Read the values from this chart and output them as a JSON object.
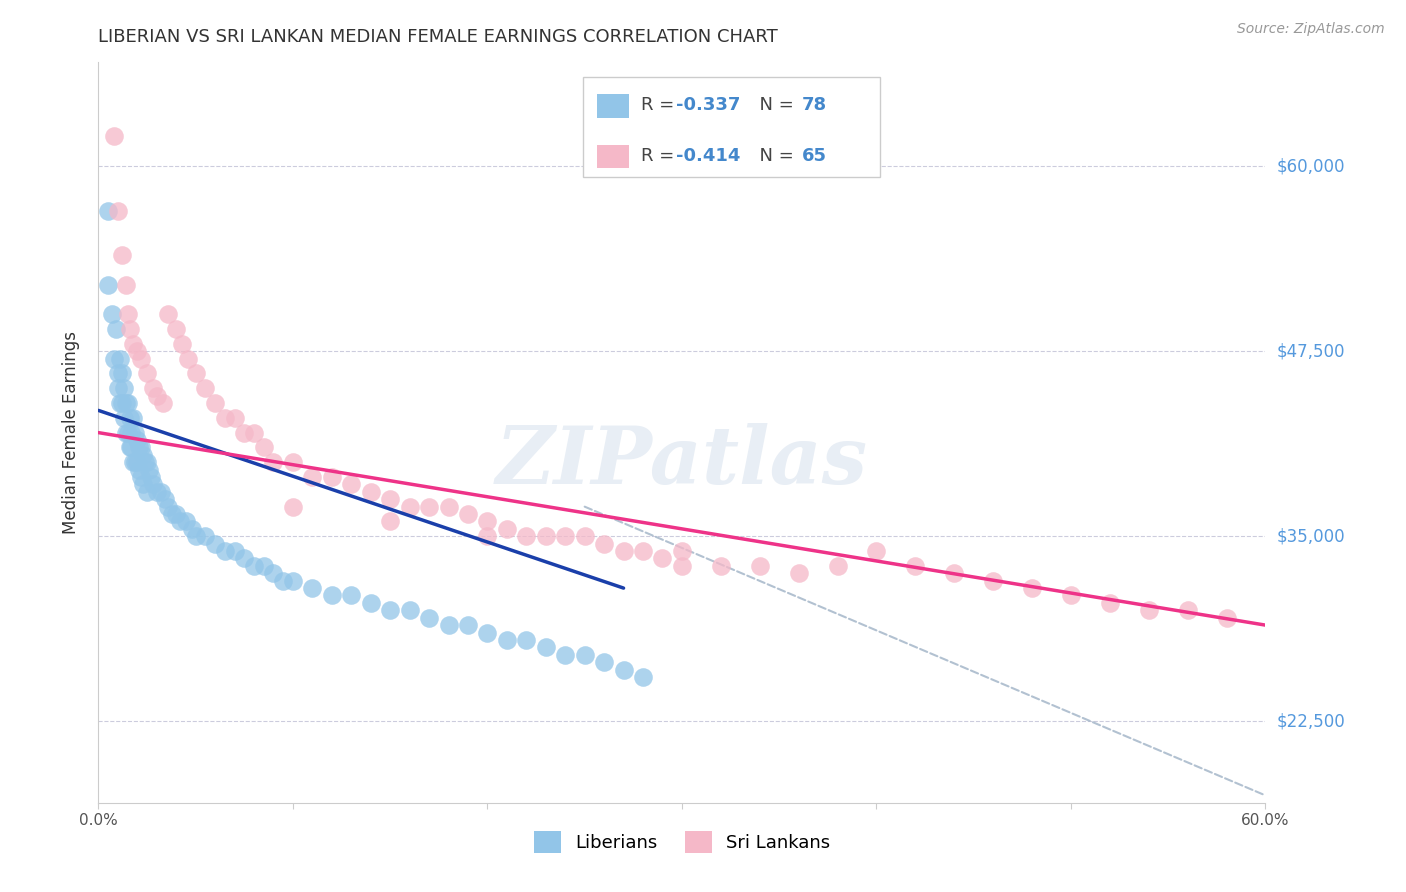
{
  "title": "LIBERIAN VS SRI LANKAN MEDIAN FEMALE EARNINGS CORRELATION CHART",
  "source": "Source: ZipAtlas.com",
  "ylabel": "Median Female Earnings",
  "xlim": [
    0.0,
    0.6
  ],
  "ylim": [
    17000,
    67000
  ],
  "yticks": [
    22500,
    35000,
    47500,
    60000
  ],
  "ytick_labels": [
    "$22,500",
    "$35,000",
    "$47,500",
    "$60,000"
  ],
  "xticks": [
    0.0,
    0.1,
    0.2,
    0.3,
    0.4,
    0.5,
    0.6
  ],
  "xtick_labels": [
    "0.0%",
    "",
    "",
    "",
    "",
    "",
    "60.0%"
  ],
  "color_liberian": "#92C5E8",
  "color_srilankan": "#F5B8C8",
  "color_trend_liberian": "#1A3FAA",
  "color_trend_srilankan": "#EE3388",
  "color_trend_dashed": "#AABBCC",
  "watermark": "ZIPatlas",
  "liberian_x": [
    0.005,
    0.005,
    0.007,
    0.008,
    0.009,
    0.01,
    0.01,
    0.011,
    0.011,
    0.012,
    0.012,
    0.013,
    0.013,
    0.014,
    0.014,
    0.015,
    0.015,
    0.016,
    0.016,
    0.017,
    0.017,
    0.018,
    0.018,
    0.019,
    0.019,
    0.02,
    0.02,
    0.021,
    0.021,
    0.022,
    0.022,
    0.023,
    0.023,
    0.024,
    0.025,
    0.025,
    0.026,
    0.027,
    0.028,
    0.03,
    0.032,
    0.034,
    0.036,
    0.038,
    0.04,
    0.042,
    0.045,
    0.048,
    0.05,
    0.055,
    0.06,
    0.065,
    0.07,
    0.075,
    0.08,
    0.085,
    0.09,
    0.095,
    0.1,
    0.11,
    0.12,
    0.13,
    0.14,
    0.15,
    0.16,
    0.17,
    0.18,
    0.19,
    0.2,
    0.21,
    0.22,
    0.23,
    0.24,
    0.25,
    0.26,
    0.27,
    0.28
  ],
  "liberian_y": [
    57000,
    52000,
    50000,
    47000,
    49000,
    45000,
    46000,
    47000,
    44000,
    46000,
    44000,
    45000,
    43000,
    44000,
    42000,
    44000,
    42000,
    43000,
    41000,
    42000,
    41000,
    43000,
    40000,
    42000,
    40000,
    41500,
    40000,
    41000,
    39500,
    41000,
    39000,
    40500,
    38500,
    40000,
    40000,
    38000,
    39500,
    39000,
    38500,
    38000,
    38000,
    37500,
    37000,
    36500,
    36500,
    36000,
    36000,
    35500,
    35000,
    35000,
    34500,
    34000,
    34000,
    33500,
    33000,
    33000,
    32500,
    32000,
    32000,
    31500,
    31000,
    31000,
    30500,
    30000,
    30000,
    29500,
    29000,
    29000,
    28500,
    28000,
    28000,
    27500,
    27000,
    27000,
    26500,
    26000,
    25500
  ],
  "srilankan_x": [
    0.008,
    0.01,
    0.012,
    0.014,
    0.015,
    0.016,
    0.018,
    0.02,
    0.022,
    0.025,
    0.028,
    0.03,
    0.033,
    0.036,
    0.04,
    0.043,
    0.046,
    0.05,
    0.055,
    0.06,
    0.065,
    0.07,
    0.075,
    0.08,
    0.085,
    0.09,
    0.1,
    0.11,
    0.12,
    0.13,
    0.14,
    0.15,
    0.16,
    0.17,
    0.18,
    0.19,
    0.2,
    0.21,
    0.22,
    0.23,
    0.24,
    0.25,
    0.26,
    0.27,
    0.28,
    0.29,
    0.3,
    0.32,
    0.34,
    0.36,
    0.38,
    0.4,
    0.42,
    0.44,
    0.46,
    0.48,
    0.5,
    0.52,
    0.54,
    0.56,
    0.58,
    0.1,
    0.15,
    0.2,
    0.3
  ],
  "srilankan_y": [
    62000,
    57000,
    54000,
    52000,
    50000,
    49000,
    48000,
    47500,
    47000,
    46000,
    45000,
    44500,
    44000,
    50000,
    49000,
    48000,
    47000,
    46000,
    45000,
    44000,
    43000,
    43000,
    42000,
    42000,
    41000,
    40000,
    40000,
    39000,
    39000,
    38500,
    38000,
    37500,
    37000,
    37000,
    37000,
    36500,
    36000,
    35500,
    35000,
    35000,
    35000,
    35000,
    34500,
    34000,
    34000,
    33500,
    33000,
    33000,
    33000,
    32500,
    33000,
    34000,
    33000,
    32500,
    32000,
    31500,
    31000,
    30500,
    30000,
    30000,
    29500,
    37000,
    36000,
    35000,
    34000
  ],
  "lib_trend_x0": 0.0,
  "lib_trend_x1": 0.27,
  "lib_trend_y0": 43500,
  "lib_trend_y1": 31500,
  "sri_trend_x0": 0.0,
  "sri_trend_x1": 0.6,
  "sri_trend_y0": 42000,
  "sri_trend_y1": 29000,
  "dash_trend_x0": 0.25,
  "dash_trend_x1": 0.6,
  "dash_trend_y0": 37000,
  "dash_trend_y1": 17500
}
